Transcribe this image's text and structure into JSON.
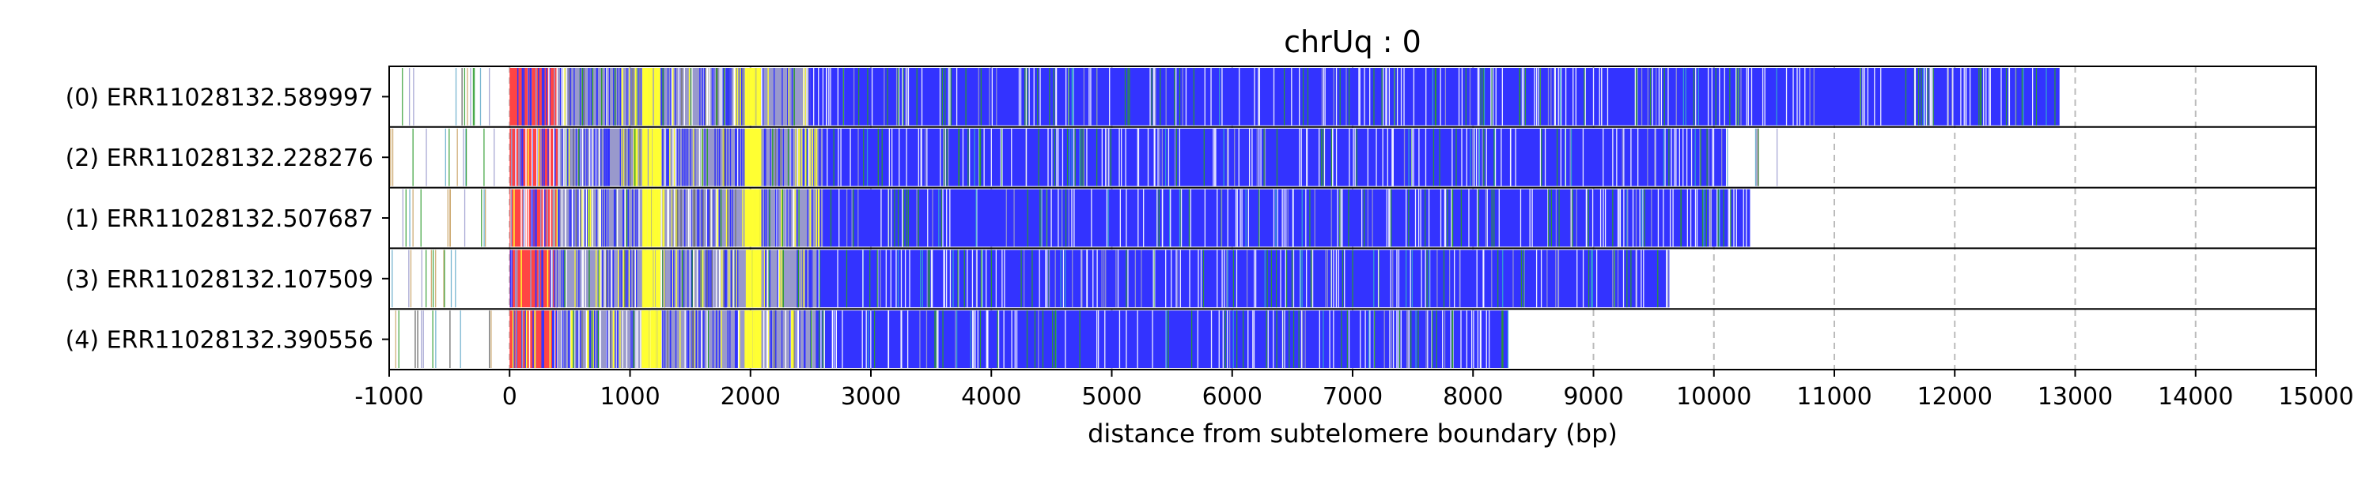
{
  "chart_data": {
    "type": "bar",
    "title": "chrUq : 0",
    "xlabel": "distance from subtelomere boundary (bp)",
    "ylabel": "",
    "xlim": [
      -1000,
      15000
    ],
    "xticks": [
      -1000,
      0,
      1000,
      2000,
      3000,
      4000,
      5000,
      6000,
      7000,
      8000,
      9000,
      10000,
      11000,
      12000,
      13000,
      14000,
      15000
    ],
    "tick_labels": [
      "-1000",
      "0",
      "1000",
      "2000",
      "3000",
      "4000",
      "5000",
      "6000",
      "7000",
      "8000",
      "9000",
      "10000",
      "11000",
      "12000",
      "13000",
      "14000",
      "15000"
    ],
    "grid": "vertical dashed",
    "categories": [
      "(0) ERR11028132.589997",
      "(2) ERR11028132.228276",
      "(1) ERR11028132.507687",
      "(3) ERR11028132.107509",
      "(4) ERR11028132.390556"
    ],
    "colors": {
      "repeat": "#3333ff",
      "subtelomere": "#ff4444",
      "variant_yellow": "#ffff33",
      "variant_green": "#2a9a2a",
      "variant_light": "#9999cc",
      "grid": "#bbbbbb"
    },
    "reads": [
      {
        "label": "(0) ERR11028132.589997",
        "end": 12870,
        "segments": [
          {
            "start": -1000,
            "end": -50,
            "kind": "sparse"
          },
          {
            "start": 0,
            "end": 400,
            "kind": "subtelomere"
          },
          {
            "start": 400,
            "end": 2500,
            "kind": "mixed"
          },
          {
            "start": 2500,
            "end": 12870,
            "kind": "repeat"
          }
        ]
      },
      {
        "label": "(2) ERR11028132.228276",
        "end": 10560,
        "segments": [
          {
            "start": -1000,
            "end": -50,
            "kind": "sparse"
          },
          {
            "start": 0,
            "end": 400,
            "kind": "subtelomere"
          },
          {
            "start": 400,
            "end": 2600,
            "kind": "mixed"
          },
          {
            "start": 2600,
            "end": 10100,
            "kind": "repeat"
          },
          {
            "start": 10100,
            "end": 10560,
            "kind": "sparse"
          }
        ]
      },
      {
        "label": "(1) ERR11028132.507687",
        "end": 10300,
        "segments": [
          {
            "start": -1000,
            "end": -50,
            "kind": "sparse"
          },
          {
            "start": 0,
            "end": 400,
            "kind": "subtelomere"
          },
          {
            "start": 400,
            "end": 2600,
            "kind": "mixed"
          },
          {
            "start": 2600,
            "end": 10300,
            "kind": "repeat"
          }
        ]
      },
      {
        "label": "(3) ERR11028132.107509",
        "end": 9630,
        "segments": [
          {
            "start": -1000,
            "end": -50,
            "kind": "sparse"
          },
          {
            "start": 0,
            "end": 400,
            "kind": "subtelomere"
          },
          {
            "start": 400,
            "end": 2550,
            "kind": "mixed"
          },
          {
            "start": 2550,
            "end": 9630,
            "kind": "repeat"
          }
        ]
      },
      {
        "label": "(4) ERR11028132.390556",
        "end": 8290,
        "segments": [
          {
            "start": -1000,
            "end": -50,
            "kind": "sparse"
          },
          {
            "start": 0,
            "end": 400,
            "kind": "subtelomere"
          },
          {
            "start": 400,
            "end": 2550,
            "kind": "mixed"
          },
          {
            "start": 2550,
            "end": 8290,
            "kind": "repeat"
          }
        ]
      }
    ]
  }
}
